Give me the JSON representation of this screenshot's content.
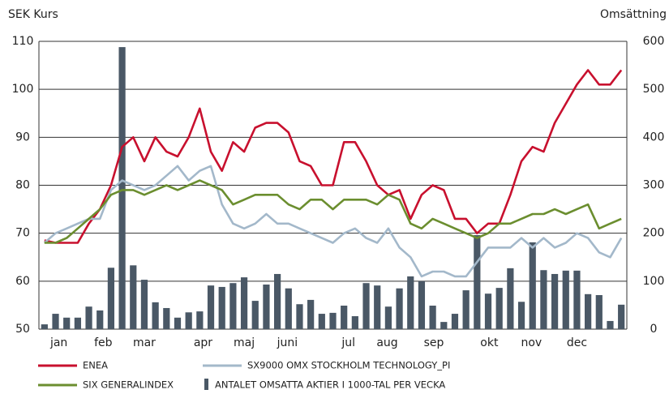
{
  "chart_data": {
    "type": "line",
    "title": "SEK Kurs",
    "y2_title": "Omsättning",
    "x": [
      1,
      2,
      3,
      4,
      5,
      6,
      7,
      8,
      9,
      10,
      11,
      12,
      13,
      14,
      15,
      16,
      17,
      18,
      19,
      20,
      21,
      22,
      23,
      24,
      25,
      26,
      27,
      28,
      29,
      30,
      31,
      32,
      33,
      34,
      35,
      36,
      37,
      38,
      39,
      40,
      41,
      42,
      43,
      44,
      45,
      46,
      47,
      48,
      49,
      50,
      51,
      52,
      53
    ],
    "xlim": [
      0,
      53
    ],
    "xticks": [
      {
        "value": 1.8,
        "label": "jan"
      },
      {
        "value": 5.8,
        "label": "feb"
      },
      {
        "value": 9.5,
        "label": "mar"
      },
      {
        "value": 14.8,
        "label": "apr"
      },
      {
        "value": 18.5,
        "label": "maj"
      },
      {
        "value": 22.4,
        "label": "juni"
      },
      {
        "value": 27.9,
        "label": "jul"
      },
      {
        "value": 31.4,
        "label": "aug"
      },
      {
        "value": 35.6,
        "label": "sep"
      },
      {
        "value": 40.6,
        "label": "okt"
      },
      {
        "value": 44.4,
        "label": "nov"
      },
      {
        "value": 48.5,
        "label": "dec"
      }
    ],
    "ylim": [
      50,
      110
    ],
    "yticks": [
      50,
      60,
      70,
      80,
      90,
      100,
      110
    ],
    "y2lim": [
      0,
      600
    ],
    "y2ticks": [
      0,
      100,
      200,
      300,
      400,
      500,
      600
    ],
    "grid": true,
    "legend": "bottom",
    "series": [
      {
        "name": "ENEA",
        "color": "#c8102e",
        "type": "line",
        "values": [
          68.5,
          68,
          68,
          68,
          72,
          75,
          80,
          88,
          90,
          85,
          90,
          87,
          86,
          90,
          96,
          87,
          83,
          89,
          87,
          92,
          93,
          93,
          91,
          85,
          84,
          80,
          80,
          89,
          89,
          85,
          80,
          78,
          79,
          73,
          78,
          80,
          79,
          73,
          73,
          70,
          72,
          72,
          78,
          85,
          88,
          87,
          93,
          97,
          101,
          104,
          101,
          101,
          104
        ]
      },
      {
        "name": "SX9000 OMX STOCKHOLM TECHNOLOGY_PI",
        "color": "#a3b8ca",
        "type": "line",
        "values": [
          68,
          70,
          71,
          72,
          73,
          73,
          79,
          81,
          80,
          79,
          80,
          82,
          84,
          81,
          83,
          84,
          76,
          72,
          71,
          72,
          74,
          72,
          72,
          71,
          70,
          69,
          68,
          70,
          71,
          69,
          68,
          71,
          67,
          65,
          61,
          62,
          62,
          61,
          61,
          64,
          67,
          67,
          67,
          69,
          67,
          69,
          67,
          68,
          70,
          69,
          66,
          65,
          69
        ]
      },
      {
        "name": "SIX GENERALINDEX",
        "color": "#6b8e2f",
        "type": "line",
        "values": [
          68,
          68,
          69,
          71,
          73,
          75,
          78,
          79,
          79,
          78,
          79,
          80,
          79,
          80,
          81,
          80,
          79,
          76,
          77,
          78,
          78,
          78,
          76,
          75,
          77,
          77,
          75,
          77,
          77,
          77,
          76,
          78,
          77,
          72,
          71,
          73,
          72,
          71,
          70,
          69,
          70,
          72,
          72,
          73,
          74,
          74,
          75,
          74,
          75,
          76,
          71,
          72,
          73
        ]
      },
      {
        "name": "ANTALET OMSATTA AKTIER I 1000-TAL PER VECKA",
        "color": "#4a5866",
        "type": "bar",
        "axis": "y2",
        "values": [
          10,
          32,
          24,
          24,
          47,
          39,
          128,
          588,
          133,
          103,
          56,
          44,
          24,
          35,
          37,
          91,
          88,
          96,
          108,
          59,
          93,
          115,
          85,
          52,
          61,
          32,
          34,
          49,
          27,
          96,
          91,
          47,
          85,
          110,
          100,
          49,
          15,
          32,
          81,
          196,
          74,
          86,
          127,
          57,
          181,
          123,
          115,
          122,
          122,
          73,
          71,
          17,
          51
        ]
      }
    ]
  }
}
